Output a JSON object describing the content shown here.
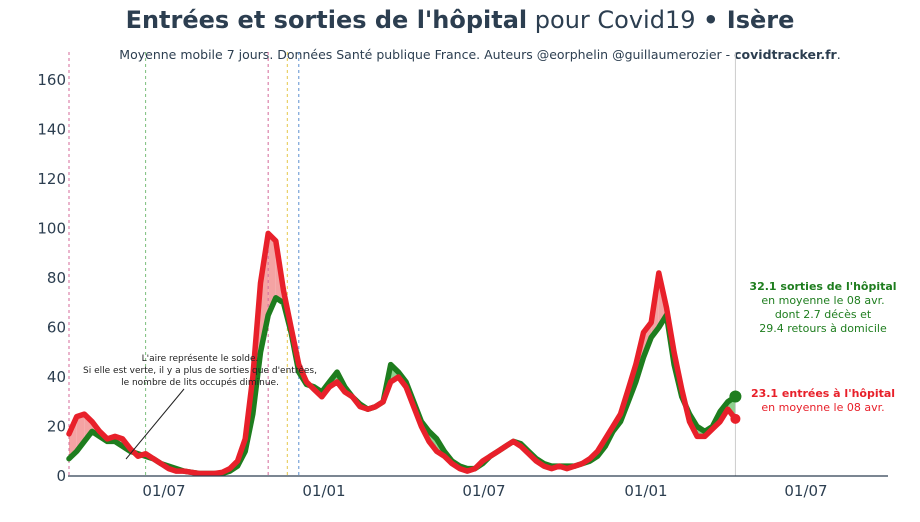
{
  "header": {
    "title_bold": "Entrées et sorties de l'hôpital",
    "title_mid": " pour Covid19 ",
    "title_sep": "•",
    "title_region": " Isère",
    "subtitle_pre": "Moyenne mobile 7 jours. Données Santé publique France. Auteurs @eorphelin @guillaumerozier - ",
    "subtitle_site": "covidtracker.fr",
    "subtitle_end": "."
  },
  "chart_data": {
    "type": "line",
    "title": "Entrées et sorties de l'hôpital pour Covid19 • Isère",
    "subtitle": "Moyenne mobile 7 jours. Données Santé publique France. Auteurs @eorphelin @guillaumerozier - covidtracker.fr.",
    "ylim": [
      0,
      170
    ],
    "yticks": [
      0,
      20,
      40,
      60,
      80,
      100,
      120,
      140,
      160
    ],
    "xticks": [
      "01/07",
      "01/01",
      "01/07",
      "01/01",
      "01/07"
    ],
    "grid": false,
    "colors": {
      "entrees": "#e8202a",
      "sorties": "#1e7d1e",
      "fill_positive": "#f4a3a3",
      "fill_negative": "#8ed18e"
    },
    "series": [
      {
        "name": "entrées à l'hôpital",
        "color": "#e8202a",
        "points": [
          [
            0,
            17
          ],
          [
            2,
            24
          ],
          [
            4,
            25
          ],
          [
            6,
            22
          ],
          [
            8,
            18
          ],
          [
            10,
            15
          ],
          [
            12,
            16
          ],
          [
            14,
            15
          ],
          [
            16,
            11
          ],
          [
            18,
            8
          ],
          [
            20,
            9
          ],
          [
            22,
            7
          ],
          [
            24,
            5
          ],
          [
            26,
            3
          ],
          [
            28,
            2
          ],
          [
            30,
            2
          ],
          [
            32,
            1.5
          ],
          [
            34,
            1
          ],
          [
            36,
            1
          ],
          [
            38,
            1
          ],
          [
            40,
            1.5
          ],
          [
            42,
            3
          ],
          [
            44,
            6
          ],
          [
            46,
            15
          ],
          [
            48,
            40
          ],
          [
            50,
            78
          ],
          [
            52,
            98
          ],
          [
            54,
            95
          ],
          [
            56,
            75
          ],
          [
            58,
            60
          ],
          [
            60,
            45
          ],
          [
            62,
            38
          ],
          [
            64,
            35
          ],
          [
            66,
            32
          ],
          [
            68,
            36
          ],
          [
            70,
            38
          ],
          [
            72,
            34
          ],
          [
            74,
            32
          ],
          [
            76,
            28
          ],
          [
            78,
            27
          ],
          [
            80,
            28
          ],
          [
            82,
            30
          ],
          [
            84,
            38
          ],
          [
            86,
            40
          ],
          [
            88,
            36
          ],
          [
            90,
            28
          ],
          [
            92,
            20
          ],
          [
            94,
            14
          ],
          [
            96,
            10
          ],
          [
            98,
            8
          ],
          [
            100,
            5
          ],
          [
            102,
            3
          ],
          [
            104,
            2
          ],
          [
            106,
            3
          ],
          [
            108,
            6
          ],
          [
            110,
            8
          ],
          [
            112,
            10
          ],
          [
            114,
            12
          ],
          [
            116,
            14
          ],
          [
            118,
            12
          ],
          [
            120,
            9
          ],
          [
            122,
            6
          ],
          [
            124,
            4
          ],
          [
            126,
            3
          ],
          [
            128,
            4
          ],
          [
            130,
            3
          ],
          [
            132,
            4
          ],
          [
            134,
            5
          ],
          [
            136,
            7
          ],
          [
            138,
            10
          ],
          [
            140,
            15
          ],
          [
            142,
            20
          ],
          [
            144,
            25
          ],
          [
            146,
            35
          ],
          [
            148,
            45
          ],
          [
            150,
            58
          ],
          [
            152,
            62
          ],
          [
            154,
            82
          ],
          [
            156,
            68
          ],
          [
            158,
            50
          ],
          [
            160,
            35
          ],
          [
            162,
            22
          ],
          [
            164,
            16
          ],
          [
            166,
            16
          ],
          [
            168,
            19
          ],
          [
            170,
            22
          ],
          [
            172,
            27
          ],
          [
            174,
            23.1
          ]
        ]
      },
      {
        "name": "sorties de l'hôpital",
        "color": "#1e7d1e",
        "points": [
          [
            0,
            7
          ],
          [
            2,
            10
          ],
          [
            4,
            14
          ],
          [
            6,
            18
          ],
          [
            8,
            16
          ],
          [
            10,
            14
          ],
          [
            12,
            14
          ],
          [
            14,
            12
          ],
          [
            16,
            10
          ],
          [
            18,
            9
          ],
          [
            20,
            8
          ],
          [
            22,
            7
          ],
          [
            24,
            5
          ],
          [
            26,
            4
          ],
          [
            28,
            3
          ],
          [
            30,
            2
          ],
          [
            32,
            1.5
          ],
          [
            34,
            1
          ],
          [
            36,
            1
          ],
          [
            38,
            1
          ],
          [
            40,
            1
          ],
          [
            42,
            2
          ],
          [
            44,
            4
          ],
          [
            46,
            10
          ],
          [
            48,
            25
          ],
          [
            50,
            50
          ],
          [
            52,
            65
          ],
          [
            54,
            72
          ],
          [
            56,
            70
          ],
          [
            58,
            58
          ],
          [
            60,
            42
          ],
          [
            62,
            37
          ],
          [
            64,
            36
          ],
          [
            66,
            34
          ],
          [
            68,
            38
          ],
          [
            70,
            42
          ],
          [
            72,
            36
          ],
          [
            74,
            32
          ],
          [
            76,
            29
          ],
          [
            78,
            27
          ],
          [
            80,
            28
          ],
          [
            82,
            30
          ],
          [
            84,
            45
          ],
          [
            86,
            42
          ],
          [
            88,
            38
          ],
          [
            90,
            30
          ],
          [
            92,
            22
          ],
          [
            94,
            18
          ],
          [
            96,
            15
          ],
          [
            98,
            10
          ],
          [
            100,
            6
          ],
          [
            102,
            4
          ],
          [
            104,
            3
          ],
          [
            106,
            3
          ],
          [
            108,
            5
          ],
          [
            110,
            8
          ],
          [
            112,
            10
          ],
          [
            114,
            12
          ],
          [
            116,
            14
          ],
          [
            118,
            13
          ],
          [
            120,
            10
          ],
          [
            122,
            7
          ],
          [
            124,
            5
          ],
          [
            126,
            4
          ],
          [
            128,
            4
          ],
          [
            130,
            4
          ],
          [
            132,
            4
          ],
          [
            134,
            5
          ],
          [
            136,
            6
          ],
          [
            138,
            8
          ],
          [
            140,
            12
          ],
          [
            142,
            18
          ],
          [
            144,
            22
          ],
          [
            146,
            30
          ],
          [
            148,
            38
          ],
          [
            150,
            48
          ],
          [
            152,
            56
          ],
          [
            154,
            60
          ],
          [
            156,
            65
          ],
          [
            158,
            45
          ],
          [
            160,
            32
          ],
          [
            162,
            25
          ],
          [
            164,
            20
          ],
          [
            166,
            18
          ],
          [
            168,
            20
          ],
          [
            170,
            26
          ],
          [
            172,
            30
          ],
          [
            174,
            32.1
          ]
        ]
      }
    ],
    "vlines": [
      {
        "x": 0,
        "color": "#d46a9a"
      },
      {
        "x": 20,
        "color": "#7bbf7b"
      },
      {
        "x": 52,
        "color": "#d46a9a"
      },
      {
        "x": 57,
        "color": "#e6c84a"
      },
      {
        "x": 60,
        "color": "#5b8fd0"
      },
      {
        "x": 174,
        "color": "#cccccc"
      }
    ]
  },
  "annotations": {
    "solde_lines": [
      "L'aire représente le solde.",
      "Si elle est verte, il y a plus de sorties que d'entrées,",
      "le nombre de lits occupés diminue."
    ],
    "sorties_label": "32.1 sorties de l'hôpital",
    "sorties_lines": [
      "en moyenne le 08 avr.",
      "dont 2.7 décès et",
      "29.4 retours à domicile"
    ],
    "entrees_label": "23.1 entrées à l'hôpital",
    "entrees_line": "en moyenne le 08 avr."
  }
}
